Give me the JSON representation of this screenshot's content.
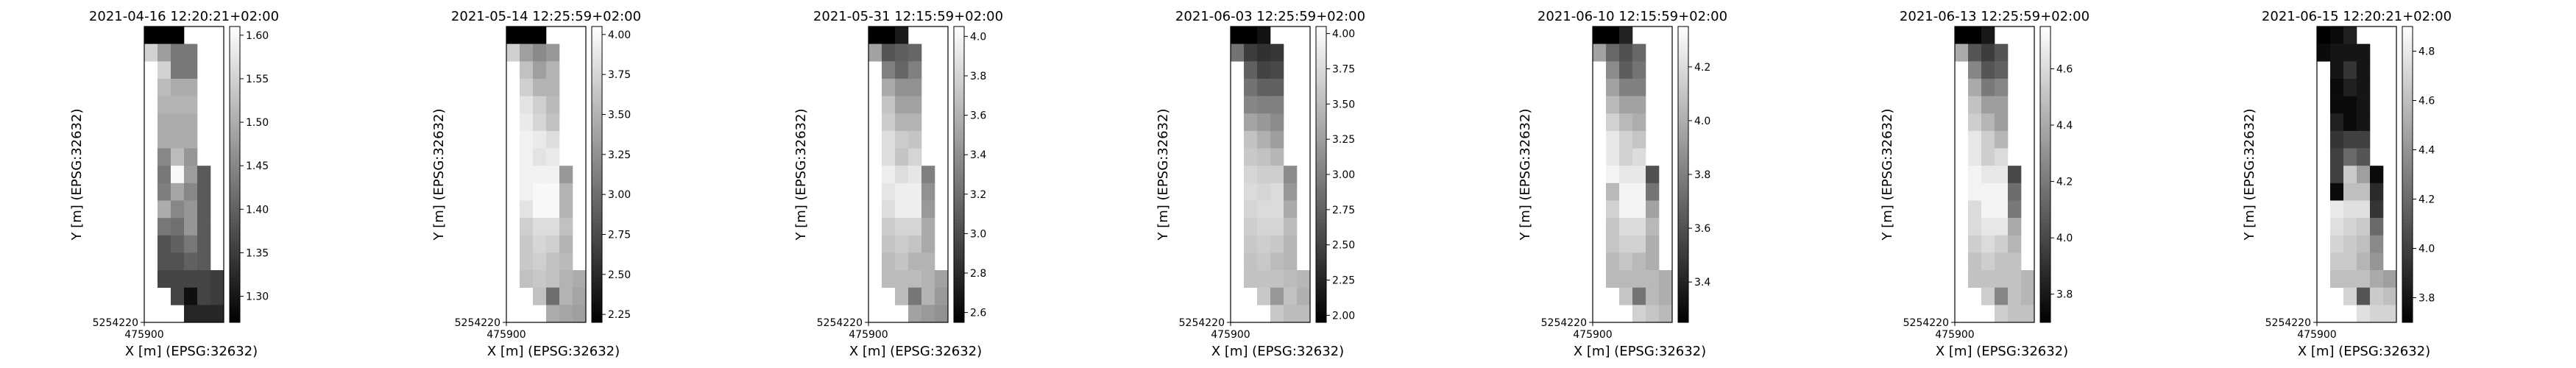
{
  "chart_data": [
    {
      "type": "heatmap",
      "title": "2021-04-16 12:20:21+02:00",
      "xlabel": "X [m] (EPSG:32632)",
      "ylabel": "Y [m] (EPSG:32632)",
      "x_tick_labels": [
        "475900"
      ],
      "y_tick_labels": [
        "5254220"
      ],
      "colorbar_ticks": [
        1.3,
        1.35,
        1.4,
        1.45,
        1.5,
        1.55,
        1.6
      ],
      "colorbar_tick_labels": [
        "1.30",
        "1.35",
        "1.40",
        "1.45",
        "1.50",
        "1.55",
        "1.60"
      ],
      "vmin": 1.27,
      "vmax": 1.61,
      "cmap": "gray",
      "grid": [
        [
          1.27,
          1.27,
          1.27,
          null,
          null,
          null
        ],
        [
          1.55,
          1.48,
          1.43,
          1.43,
          null,
          null
        ],
        [
          null,
          1.55,
          1.43,
          1.43,
          null,
          null
        ],
        [
          null,
          1.52,
          1.5,
          1.5,
          null,
          null
        ],
        [
          null,
          1.51,
          1.51,
          1.51,
          null,
          null
        ],
        [
          null,
          1.5,
          1.5,
          1.5,
          null,
          null
        ],
        [
          null,
          1.5,
          1.5,
          1.5,
          null,
          null
        ],
        [
          null,
          1.45,
          1.52,
          1.47,
          null,
          null
        ],
        [
          null,
          1.43,
          1.6,
          1.48,
          1.39,
          null
        ],
        [
          null,
          1.44,
          1.49,
          1.45,
          1.39,
          null
        ],
        [
          null,
          1.5,
          1.45,
          1.47,
          1.39,
          null
        ],
        [
          null,
          1.43,
          1.42,
          1.47,
          1.39,
          null
        ],
        [
          null,
          1.38,
          1.4,
          1.43,
          1.39,
          null
        ],
        [
          null,
          1.38,
          1.38,
          1.4,
          1.39,
          null
        ],
        [
          null,
          1.36,
          1.36,
          1.36,
          1.36,
          1.35
        ],
        [
          null,
          null,
          1.36,
          1.29,
          1.36,
          1.35
        ],
        [
          null,
          null,
          null,
          1.32,
          1.32,
          1.32
        ]
      ]
    },
    {
      "type": "heatmap",
      "title": "2021-05-14 12:25:59+02:00",
      "xlabel": "X [m] (EPSG:32632)",
      "ylabel": "Y [m] (EPSG:32632)",
      "x_tick_labels": [
        "475900"
      ],
      "y_tick_labels": [
        "5254220"
      ],
      "colorbar_ticks": [
        2.25,
        2.5,
        2.75,
        3.0,
        3.25,
        3.5,
        3.75,
        4.0
      ],
      "colorbar_tick_labels": [
        "2.25",
        "2.50",
        "2.75",
        "3.00",
        "3.25",
        "3.50",
        "3.75",
        "4.00"
      ],
      "vmin": 2.2,
      "vmax": 4.05,
      "cmap": "gray",
      "grid": [
        [
          2.2,
          2.2,
          2.2,
          null,
          null,
          null
        ],
        [
          3.7,
          3.35,
          3.2,
          3.3,
          null,
          null
        ],
        [
          null,
          3.6,
          3.35,
          3.5,
          null,
          null
        ],
        [
          null,
          3.7,
          3.5,
          3.5,
          null,
          null
        ],
        [
          null,
          3.85,
          3.7,
          3.55,
          null,
          null
        ],
        [
          null,
          3.9,
          3.75,
          3.6,
          null,
          null
        ],
        [
          null,
          3.95,
          3.9,
          3.8,
          null,
          null
        ],
        [
          null,
          3.95,
          3.85,
          3.9,
          null,
          null
        ],
        [
          null,
          3.95,
          3.95,
          3.95,
          3.3,
          null
        ],
        [
          null,
          3.95,
          4.0,
          4.0,
          3.5,
          null
        ],
        [
          null,
          3.85,
          4.0,
          4.0,
          3.5,
          null
        ],
        [
          null,
          3.7,
          3.8,
          3.8,
          3.6,
          null
        ],
        [
          null,
          3.65,
          3.75,
          3.7,
          3.5,
          null
        ],
        [
          null,
          3.65,
          3.7,
          3.6,
          3.55,
          null
        ],
        [
          null,
          3.6,
          3.65,
          3.6,
          3.5,
          3.45
        ],
        [
          null,
          null,
          3.6,
          3.0,
          3.5,
          3.4
        ],
        [
          null,
          null,
          null,
          3.45,
          3.4,
          3.35
        ]
      ]
    },
    {
      "type": "heatmap",
      "title": "2021-05-31 12:15:59+02:00",
      "xlabel": "X [m] (EPSG:32632)",
      "ylabel": "Y [m] (EPSG:32632)",
      "x_tick_labels": [
        "475900"
      ],
      "y_tick_labels": [
        "5254220"
      ],
      "colorbar_ticks": [
        2.6,
        2.8,
        3.0,
        3.2,
        3.4,
        3.6,
        3.8,
        4.0
      ],
      "colorbar_tick_labels": [
        "2.6",
        "2.8",
        "3.0",
        "3.2",
        "3.4",
        "3.6",
        "3.8",
        "4.0"
      ],
      "vmin": 2.55,
      "vmax": 4.05,
      "cmap": "gray",
      "grid": [
        [
          2.55,
          2.55,
          2.7,
          null,
          null,
          null
        ],
        [
          3.5,
          3.05,
          3.1,
          3.15,
          null,
          null
        ],
        [
          null,
          3.3,
          3.15,
          3.3,
          null,
          null
        ],
        [
          null,
          3.55,
          3.4,
          3.4,
          null,
          null
        ],
        [
          null,
          3.7,
          3.5,
          3.5,
          null,
          null
        ],
        [
          null,
          3.75,
          3.6,
          3.6,
          null,
          null
        ],
        [
          null,
          3.85,
          3.75,
          3.7,
          null,
          null
        ],
        [
          null,
          3.85,
          3.7,
          3.8,
          null,
          null
        ],
        [
          null,
          3.95,
          3.85,
          3.9,
          3.3,
          null
        ],
        [
          null,
          3.9,
          3.95,
          3.95,
          3.4,
          null
        ],
        [
          null,
          3.85,
          3.95,
          3.95,
          3.45,
          null
        ],
        [
          null,
          3.75,
          3.8,
          3.8,
          3.55,
          null
        ],
        [
          null,
          3.7,
          3.75,
          3.7,
          3.55,
          null
        ],
        [
          null,
          3.65,
          3.7,
          3.6,
          3.6,
          null
        ],
        [
          null,
          3.65,
          3.65,
          3.65,
          3.6,
          3.5
        ],
        [
          null,
          null,
          3.65,
          3.25,
          3.6,
          3.45
        ],
        [
          null,
          null,
          null,
          3.5,
          3.45,
          3.4
        ]
      ]
    },
    {
      "type": "heatmap",
      "title": "2021-06-03 12:25:59+02:00",
      "xlabel": "X [m] (EPSG:32632)",
      "ylabel": "Y [m] (EPSG:32632)",
      "x_tick_labels": [
        "475900"
      ],
      "y_tick_labels": [
        "5254220"
      ],
      "colorbar_ticks": [
        2.0,
        2.25,
        2.5,
        2.75,
        3.0,
        3.25,
        3.5,
        3.75,
        4.0
      ],
      "colorbar_tick_labels": [
        "2.00",
        "2.25",
        "2.50",
        "2.75",
        "3.00",
        "3.25",
        "3.50",
        "3.75",
        "4.00"
      ],
      "vmin": 1.95,
      "vmax": 4.05,
      "cmap": "gray",
      "grid": [
        [
          1.95,
          1.95,
          2.1,
          null,
          null,
          null
        ],
        [
          2.9,
          2.45,
          2.35,
          2.4,
          null,
          null
        ],
        [
          null,
          2.75,
          2.5,
          2.55,
          null,
          null
        ],
        [
          null,
          2.9,
          2.75,
          2.75,
          null,
          null
        ],
        [
          null,
          3.05,
          3.0,
          3.0,
          null,
          null
        ],
        [
          null,
          3.3,
          3.2,
          3.1,
          null,
          null
        ],
        [
          null,
          3.55,
          3.4,
          3.25,
          null,
          null
        ],
        [
          null,
          3.6,
          3.55,
          3.45,
          null,
          null
        ],
        [
          null,
          3.7,
          3.65,
          3.65,
          3.1,
          null
        ],
        [
          null,
          3.75,
          3.7,
          3.75,
          3.2,
          null
        ],
        [
          null,
          3.7,
          3.75,
          3.75,
          3.35,
          null
        ],
        [
          null,
          3.65,
          3.7,
          3.7,
          3.5,
          null
        ],
        [
          null,
          3.6,
          3.65,
          3.6,
          3.45,
          null
        ],
        [
          null,
          3.55,
          3.6,
          3.5,
          3.45,
          null
        ],
        [
          null,
          3.55,
          3.55,
          3.55,
          3.5,
          3.45
        ],
        [
          null,
          null,
          3.6,
          3.2,
          3.55,
          3.4
        ],
        [
          null,
          null,
          null,
          3.6,
          3.5,
          3.5
        ]
      ]
    },
    {
      "type": "heatmap",
      "title": "2021-06-10 12:15:59+02:00",
      "xlabel": "X [m] (EPSG:32632)",
      "ylabel": "Y [m] (EPSG:32632)",
      "x_tick_labels": [
        "475900"
      ],
      "y_tick_labels": [
        "5254220"
      ],
      "colorbar_ticks": [
        3.4,
        3.6,
        3.8,
        4.0,
        4.2
      ],
      "colorbar_tick_labels": [
        "3.4",
        "3.6",
        "3.8",
        "4.0",
        "4.2"
      ],
      "vmin": 3.25,
      "vmax": 4.35,
      "cmap": "gray",
      "grid": [
        [
          3.25,
          3.25,
          3.4,
          null,
          null,
          null
        ],
        [
          3.95,
          3.7,
          3.6,
          3.7,
          null,
          null
        ],
        [
          null,
          3.85,
          3.65,
          3.75,
          null,
          null
        ],
        [
          null,
          3.95,
          3.8,
          3.8,
          null,
          null
        ],
        [
          null,
          4.05,
          3.95,
          3.95,
          null,
          null
        ],
        [
          null,
          4.15,
          4.05,
          4.0,
          null,
          null
        ],
        [
          null,
          4.25,
          4.15,
          4.1,
          null,
          null
        ],
        [
          null,
          4.25,
          4.15,
          4.2,
          null,
          null
        ],
        [
          null,
          4.3,
          4.25,
          4.25,
          3.6,
          null
        ],
        [
          null,
          4.05,
          4.3,
          4.3,
          3.75,
          null
        ],
        [
          null,
          4.15,
          4.3,
          4.3,
          3.95,
          null
        ],
        [
          null,
          4.1,
          4.2,
          4.2,
          4.05,
          null
        ],
        [
          null,
          4.1,
          4.15,
          4.15,
          4.0,
          null
        ],
        [
          null,
          4.05,
          4.1,
          4.05,
          4.0,
          null
        ],
        [
          null,
          4.05,
          4.05,
          4.05,
          4.05,
          4.0
        ],
        [
          null,
          null,
          4.1,
          3.75,
          4.05,
          4.0
        ],
        [
          null,
          null,
          null,
          4.15,
          4.1,
          4.05
        ]
      ]
    },
    {
      "type": "heatmap",
      "title": "2021-06-13 12:25:59+02:00",
      "xlabel": "X [m] (EPSG:32632)",
      "ylabel": "Y [m] (EPSG:32632)",
      "x_tick_labels": [
        "475900"
      ],
      "y_tick_labels": [
        "5254220"
      ],
      "colorbar_ticks": [
        3.8,
        4.0,
        4.2,
        4.4,
        4.6
      ],
      "colorbar_tick_labels": [
        "3.8",
        "4.0",
        "4.2",
        "4.4",
        "4.6"
      ],
      "vmin": 3.7,
      "vmax": 4.75,
      "cmap": "gray",
      "grid": [
        [
          3.7,
          3.7,
          3.8,
          null,
          null,
          null
        ],
        [
          4.4,
          4.05,
          3.95,
          4.05,
          null,
          null
        ],
        [
          null,
          4.25,
          4.05,
          4.1,
          null,
          null
        ],
        [
          null,
          4.4,
          4.2,
          4.25,
          null,
          null
        ],
        [
          null,
          4.5,
          4.35,
          4.35,
          null,
          null
        ],
        [
          null,
          4.55,
          4.45,
          4.35,
          null,
          null
        ],
        [
          null,
          4.65,
          4.55,
          4.45,
          null,
          null
        ],
        [
          null,
          4.65,
          4.55,
          4.6,
          null,
          null
        ],
        [
          null,
          4.7,
          4.65,
          4.65,
          4.0,
          null
        ],
        [
          null,
          4.7,
          4.7,
          4.7,
          4.15,
          null
        ],
        [
          null,
          4.6,
          4.7,
          4.7,
          4.2,
          null
        ],
        [
          null,
          4.6,
          4.65,
          4.65,
          4.4,
          null
        ],
        [
          null,
          4.55,
          4.6,
          4.55,
          4.45,
          null
        ],
        [
          null,
          4.5,
          4.55,
          4.5,
          4.5,
          null
        ],
        [
          null,
          4.5,
          4.5,
          4.5,
          4.5,
          4.45
        ],
        [
          null,
          null,
          4.55,
          4.25,
          4.5,
          4.45
        ],
        [
          null,
          null,
          null,
          4.55,
          4.5,
          4.5
        ]
      ]
    },
    {
      "type": "heatmap",
      "title": "2021-06-15 12:20:21+02:00",
      "xlabel": "X [m] (EPSG:32632)",
      "ylabel": "Y [m] (EPSG:32632)",
      "x_tick_labels": [
        "475900"
      ],
      "y_tick_labels": [
        "5254220"
      ],
      "colorbar_ticks": [
        3.8,
        4.0,
        4.2,
        4.4,
        4.6,
        4.8
      ],
      "colorbar_tick_labels": [
        "3.8",
        "4.0",
        "4.2",
        "4.4",
        "4.6",
        "4.8"
      ],
      "vmin": 3.7,
      "vmax": 4.9,
      "cmap": "gray",
      "grid": [
        [
          3.7,
          3.75,
          3.85,
          null,
          null,
          null
        ],
        [
          3.75,
          3.8,
          3.8,
          3.8,
          null,
          null
        ],
        [
          null,
          3.8,
          3.95,
          3.8,
          null,
          null
        ],
        [
          null,
          3.75,
          3.85,
          3.8,
          null,
          null
        ],
        [
          null,
          3.75,
          3.75,
          3.8,
          null,
          null
        ],
        [
          null,
          3.85,
          3.75,
          3.8,
          null,
          null
        ],
        [
          null,
          3.95,
          4.0,
          4.0,
          null,
          null
        ],
        [
          null,
          4.0,
          4.2,
          4.1,
          null,
          null
        ],
        [
          null,
          4.0,
          4.65,
          4.45,
          3.75,
          null
        ],
        [
          null,
          3.75,
          4.6,
          4.6,
          3.9,
          null
        ],
        [
          null,
          4.8,
          4.75,
          4.75,
          3.95,
          null
        ],
        [
          null,
          4.75,
          4.7,
          4.65,
          4.2,
          null
        ],
        [
          null,
          4.7,
          4.65,
          4.6,
          4.35,
          null
        ],
        [
          null,
          4.65,
          4.65,
          4.55,
          4.4,
          null
        ],
        [
          null,
          4.6,
          4.6,
          4.6,
          4.5,
          4.45
        ],
        [
          null,
          null,
          4.7,
          4.1,
          4.65,
          4.6
        ],
        [
          null,
          null,
          null,
          4.75,
          4.7,
          4.7
        ]
      ]
    }
  ]
}
